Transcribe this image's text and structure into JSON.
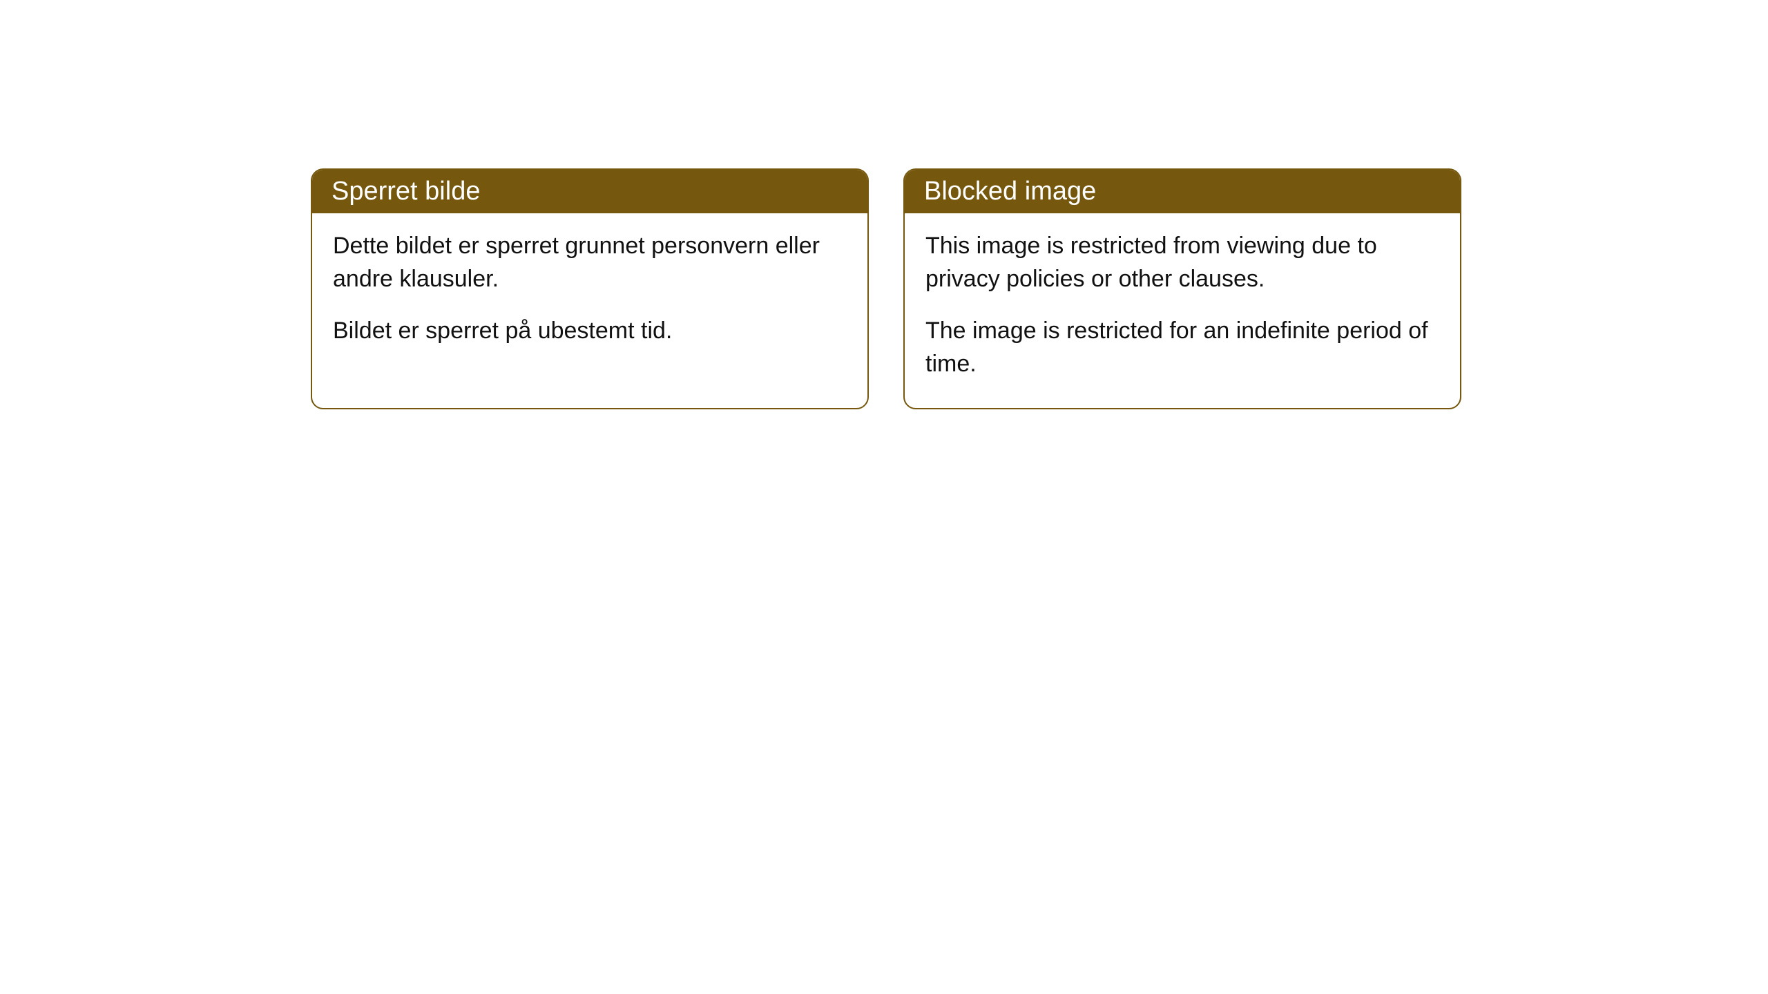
{
  "cards": [
    {
      "title": "Sperret bilde",
      "paragraph1": "Dette bildet er sperret grunnet personvern eller andre klausuler.",
      "paragraph2": "Bildet er sperret på ubestemt tid."
    },
    {
      "title": "Blocked image",
      "paragraph1": "This image is restricted from viewing due to privacy policies or other clauses.",
      "paragraph2": "The image is restricted for an indefinite period of time."
    }
  ],
  "colors": {
    "header_bg": "#75570d",
    "header_text": "#ffffff",
    "border": "#75570d",
    "body_text": "#111111",
    "page_bg": "#ffffff"
  }
}
